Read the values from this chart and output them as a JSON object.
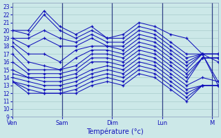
{
  "xlabel": "Température (°c)",
  "days": [
    "Ven",
    "Sam",
    "Dim",
    "Lun",
    "M"
  ],
  "day_positions": [
    0,
    4,
    8,
    12,
    16
  ],
  "ylim": [
    9,
    23.5
  ],
  "xlim": [
    0,
    16.5
  ],
  "yticks": [
    9,
    10,
    11,
    12,
    13,
    14,
    15,
    16,
    17,
    18,
    19,
    20,
    21,
    22,
    23
  ],
  "bg_color": "#cce8e8",
  "grid_color": "#a8cccc",
  "line_color": "#1111bb",
  "series": [
    [
      20,
      20,
      22.5,
      20.5,
      19.5,
      20.5,
      19,
      19.5,
      21,
      20.5,
      19.5,
      19,
      17,
      13.5
    ],
    [
      20,
      19.5,
      22,
      20,
      19,
      20,
      19,
      19,
      20.5,
      20,
      18.5,
      17,
      17,
      13
    ],
    [
      19,
      19,
      20,
      19,
      18.5,
      19.5,
      18.5,
      18.5,
      20,
      19.5,
      18,
      16.5,
      17,
      16
    ],
    [
      19,
      18,
      19,
      18,
      18,
      19,
      18,
      18,
      19.5,
      19,
      17.5,
      16,
      17,
      17
    ],
    [
      18.5,
      17,
      17,
      16,
      17.5,
      18,
      18,
      17.5,
      19,
      18.5,
      17,
      15.5,
      17,
      17
    ],
    [
      18,
      16,
      15.5,
      15,
      16.5,
      17.5,
      17.5,
      17,
      18.5,
      18,
      16.5,
      15,
      17,
      17
    ],
    [
      17,
      15,
      15,
      15,
      15.5,
      17,
      17,
      16.5,
      18,
      17.5,
      16,
      14.5,
      16.5,
      16.5
    ],
    [
      16,
      14.5,
      14.5,
      14.5,
      15,
      16.5,
      16.5,
      16,
      17.5,
      17,
      15.5,
      14,
      16.5,
      16.5
    ],
    [
      15,
      14,
      14,
      14,
      14.5,
      16,
      16,
      15.5,
      17,
      16.5,
      15,
      13.5,
      16.5,
      16.5
    ],
    [
      14.5,
      14,
      13.5,
      13.5,
      14,
      15,
      15.5,
      15,
      16.5,
      16,
      14.5,
      13,
      14,
      13.5
    ],
    [
      14,
      13.5,
      13,
      13,
      13.5,
      14.5,
      15,
      14.5,
      16,
      15.5,
      14,
      12.5,
      13,
      13
    ],
    [
      13.5,
      13,
      12.5,
      12.5,
      13,
      14,
      14.5,
      14,
      15.5,
      15,
      13.5,
      12,
      13,
      13
    ],
    [
      13.5,
      12.5,
      12,
      12,
      12.5,
      13.5,
      14,
      13.5,
      15,
      14.5,
      13,
      11.5,
      13,
      13
    ],
    [
      13.5,
      12,
      12,
      12,
      12,
      13,
      13.5,
      13,
      14.5,
      14,
      12.5,
      11,
      13,
      13
    ]
  ]
}
